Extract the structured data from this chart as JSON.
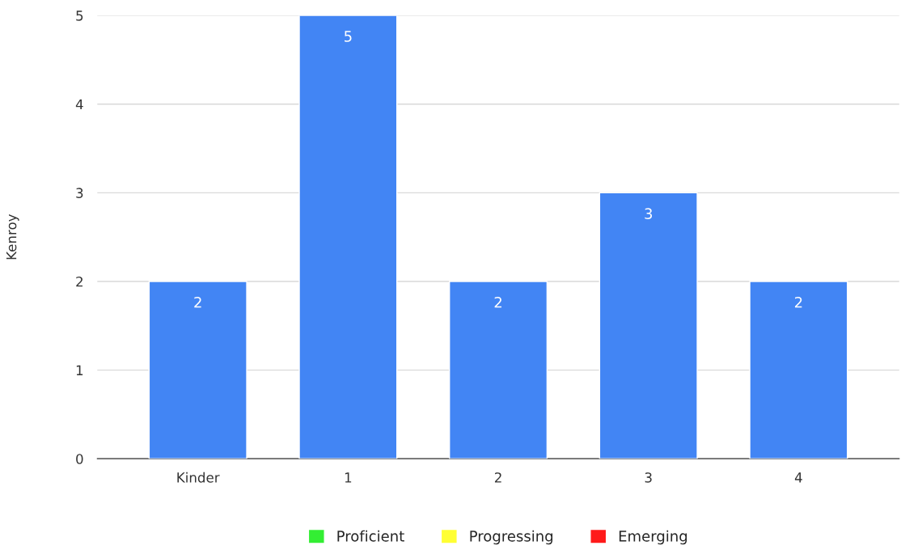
{
  "chart_data": {
    "type": "bar",
    "ylabel": "Kenroy",
    "categories": [
      "Kinder",
      "1",
      "2",
      "3",
      "4"
    ],
    "series": [
      {
        "color": "#4285f4",
        "values": [
          2,
          5,
          2,
          3,
          2
        ]
      },
      {
        "name": "Proficient",
        "color": "#33ee33",
        "values": [
          null,
          null,
          null,
          null,
          null
        ]
      },
      {
        "name": "Progressing",
        "color": "#ffff33",
        "values": [
          null,
          null,
          null,
          null,
          null
        ]
      },
      {
        "name": "Emerging",
        "color": "#ff1a1a",
        "values": [
          null,
          null,
          null,
          null,
          null
        ]
      }
    ],
    "ylim": [
      0,
      5
    ],
    "yticks": [
      0,
      1,
      2,
      3,
      4,
      5
    ],
    "grid": "y",
    "legend": "bottom",
    "data_labels": true
  }
}
